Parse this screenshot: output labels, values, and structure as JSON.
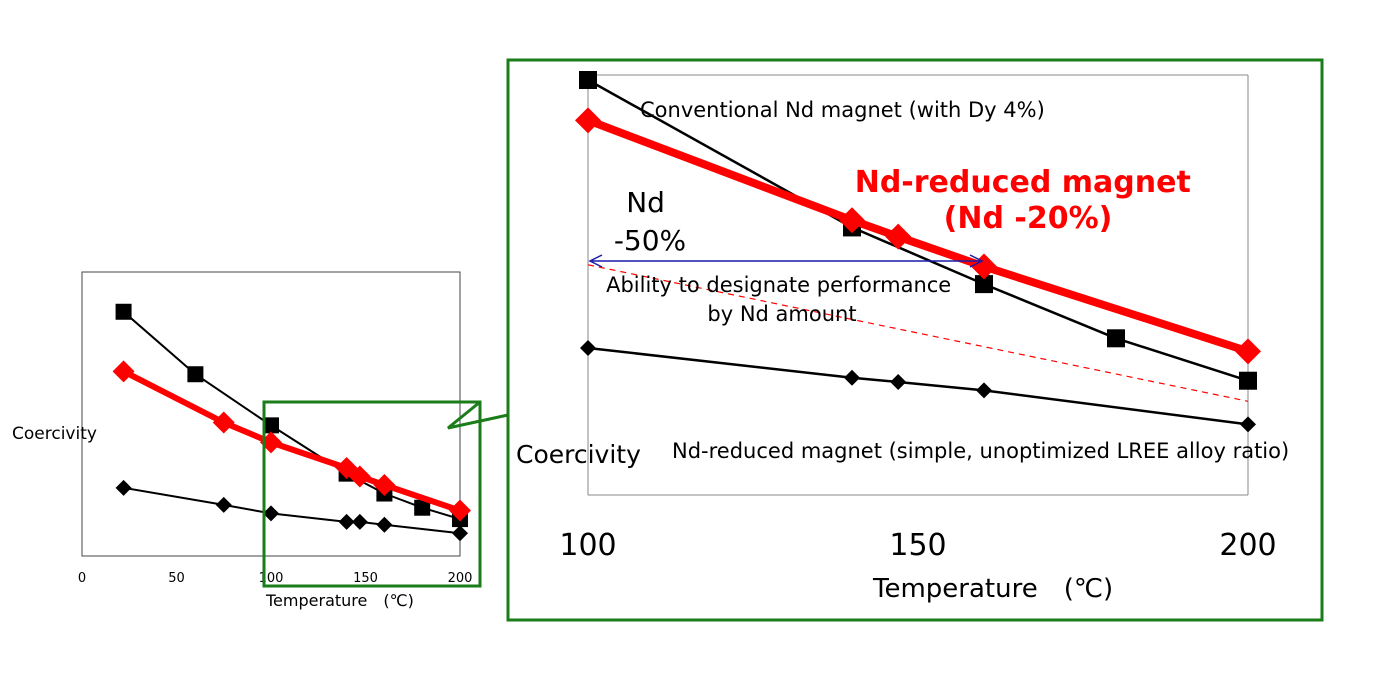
{
  "chart_data": [
    {
      "type": "line",
      "xlabel": "Temperature　(℃)",
      "ylabel": "Coercivity",
      "x_ticks": [
        0,
        50,
        100,
        150,
        200
      ],
      "xlim": [
        0,
        200
      ],
      "ylim": [
        0,
        100
      ],
      "grid": false,
      "series": [
        {
          "name": "",
          "color": "#000000",
          "marker": "square",
          "x": [
            22,
            60,
            100,
            140,
            160,
            180,
            200
          ],
          "y": [
            86,
            64,
            46,
            29,
            22,
            17,
            13
          ]
        },
        {
          "name": "",
          "color": "#ff0000",
          "marker": "diamond",
          "x": [
            22,
            75,
            100,
            140,
            147,
            160,
            200
          ],
          "y": [
            65,
            47,
            40,
            31,
            28,
            25,
            16
          ]
        },
        {
          "name": "",
          "color": "#000000",
          "marker": "diamond",
          "x": [
            22,
            75,
            100,
            140,
            147,
            160,
            200
          ],
          "y": [
            24,
            18,
            15,
            12,
            12,
            11,
            8
          ]
        }
      ]
    },
    {
      "type": "line",
      "xlabel": "Temperature　(℃)",
      "ylabel": "Coercivity",
      "x_ticks": [
        100,
        150,
        200
      ],
      "xlim": [
        100,
        200
      ],
      "ylim": [
        0,
        100
      ],
      "grid": false,
      "series": [
        {
          "name": "Conventional Nd magnet (with Dy 4%)",
          "color": "#000000",
          "marker": "square",
          "x": [
            100,
            140,
            160,
            180,
            200
          ],
          "y": [
            100,
            64.9,
            51.4,
            38.5,
            28.4
          ]
        },
        {
          "name": "Nd-reduced magnet　(Nd -20%)",
          "color": "#ff0000",
          "marker": "diamond",
          "x": [
            100,
            140,
            147,
            160,
            200
          ],
          "y": [
            90.4,
            66.6,
            62.7,
            55.6,
            35.4
          ]
        },
        {
          "name": "Nd-reduced magnet (simple, unoptimized LREE alloy ratio)",
          "color": "#000000",
          "marker": "diamond",
          "x": [
            100,
            140,
            147,
            160,
            200
          ],
          "y": [
            36.2,
            29.1,
            28.1,
            26.1,
            18.0
          ]
        },
        {
          "name": "",
          "color": "#ff0000",
          "style": "dashed",
          "x": [
            100,
            200
          ],
          "y": [
            56.0,
            23.5
          ]
        }
      ],
      "annotations": [
        {
          "text_lines": [
            "Nd",
            "-50%"
          ]
        },
        {
          "text_lines": [
            "Ability to designate performance",
            "by Nd amount"
          ]
        }
      ]
    }
  ]
}
